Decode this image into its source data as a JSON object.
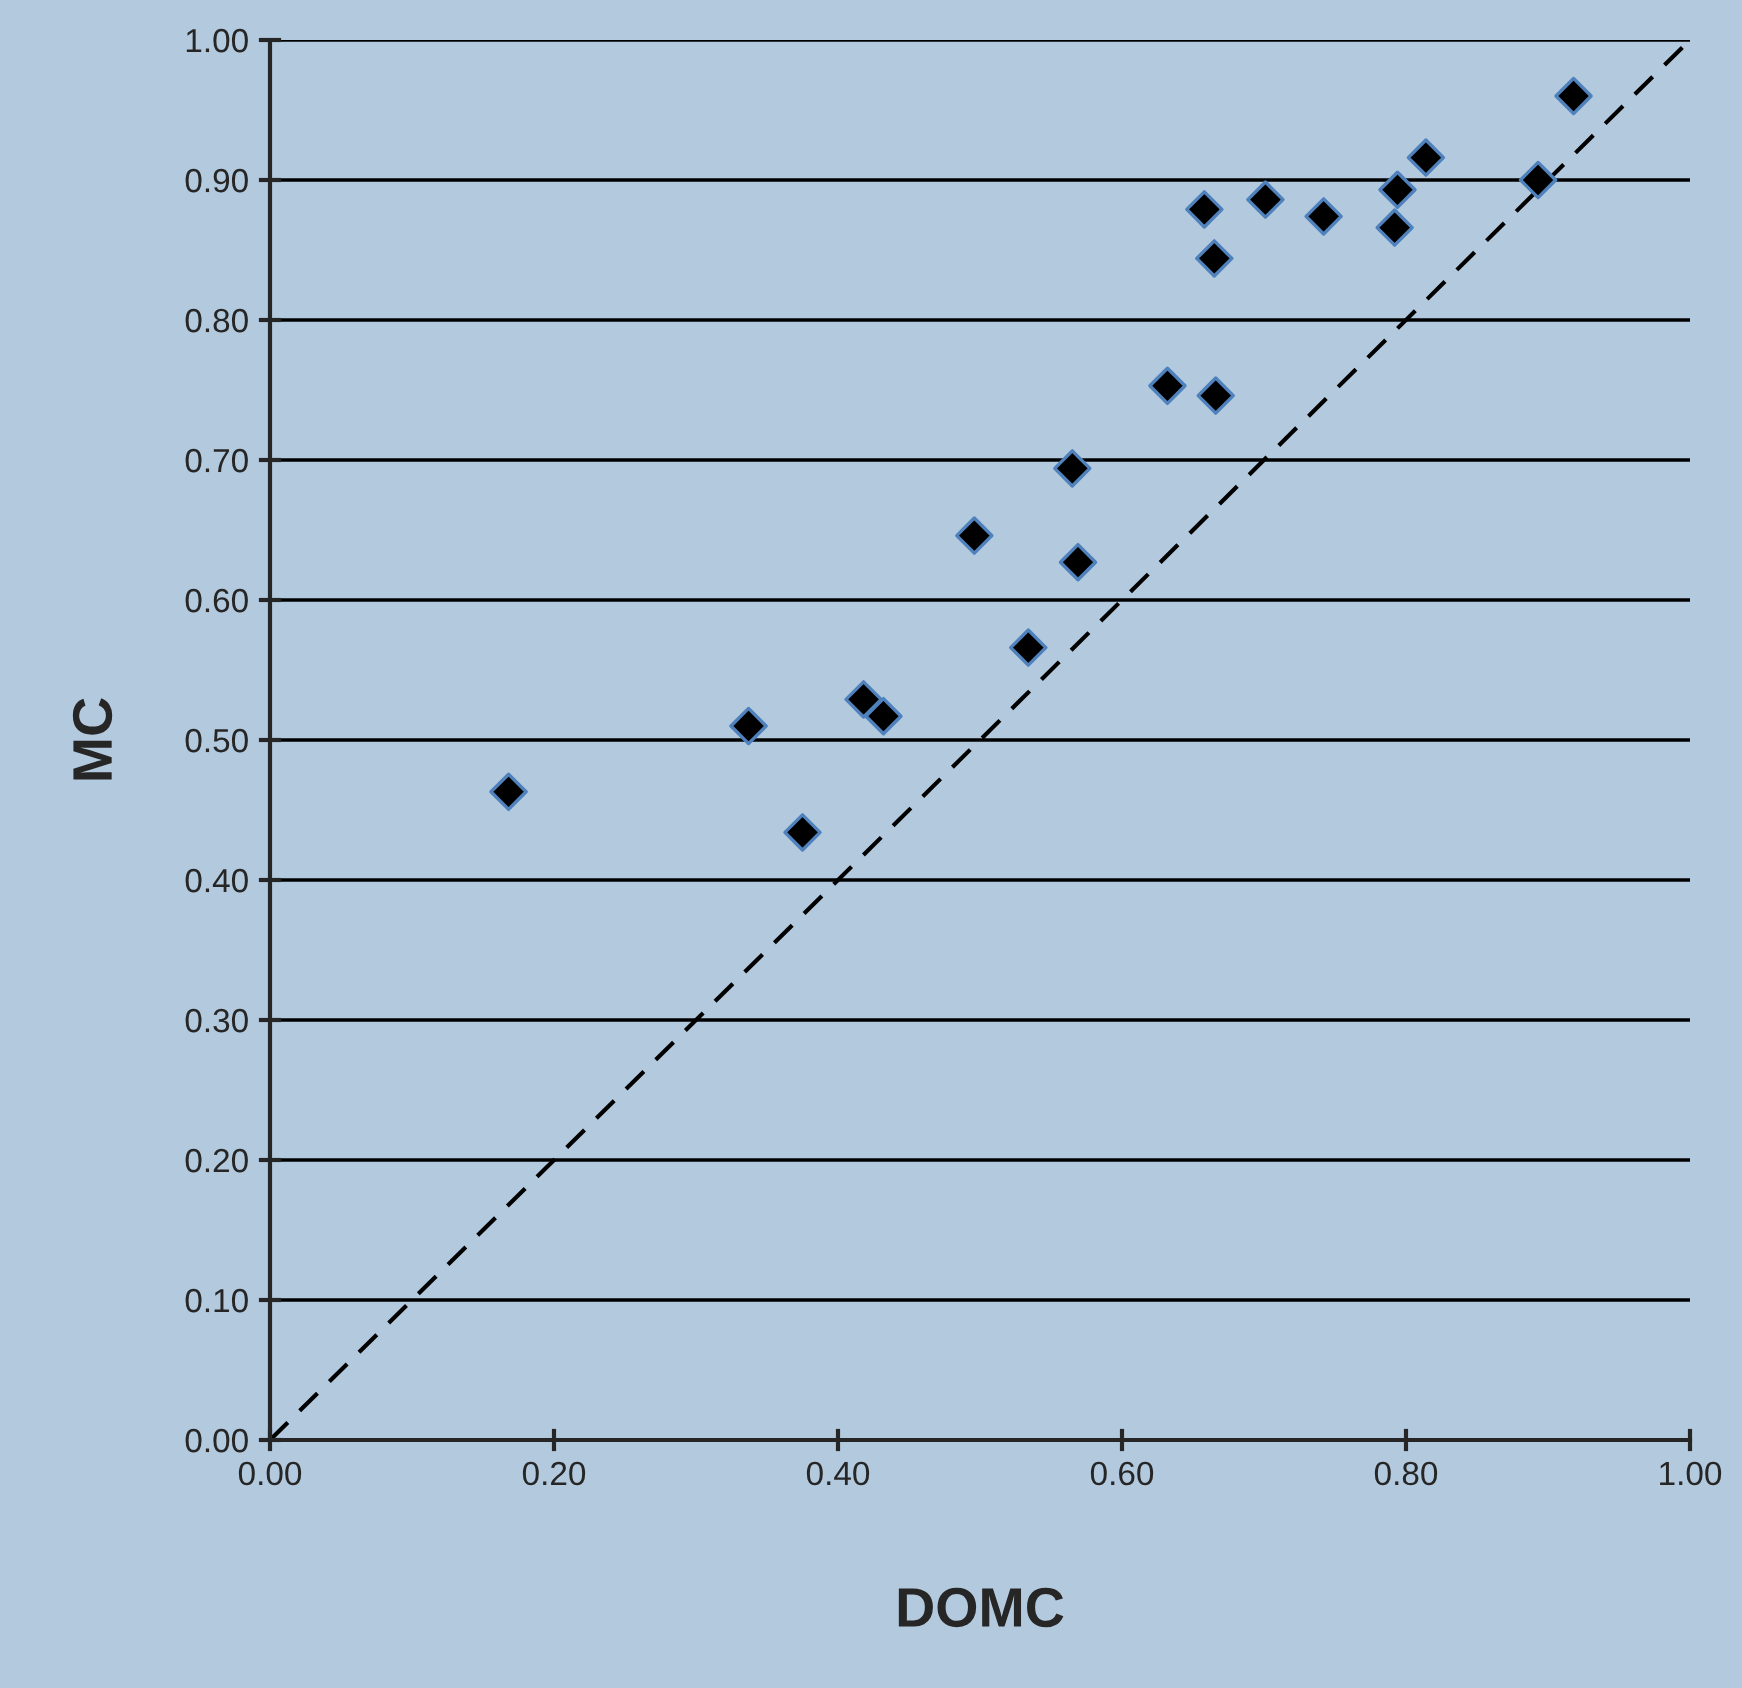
{
  "chart_data": {
    "type": "scatter",
    "xlabel": "DOMC",
    "ylabel": "MC",
    "series": [
      {
        "color": "#000000",
        "marker": "diamond",
        "x": [
          0.168,
          0.337,
          0.375,
          0.418,
          0.432,
          0.496,
          0.534,
          0.565,
          0.569,
          0.632,
          0.666,
          0.658,
          0.665,
          0.701,
          0.742,
          0.792,
          0.794,
          0.814,
          0.893,
          0.918
        ],
        "values": [
          0.463,
          0.51,
          0.434,
          0.529,
          0.517,
          0.646,
          0.566,
          0.694,
          0.627,
          0.753,
          0.746,
          0.879,
          0.844,
          0.886,
          0.874,
          0.866,
          0.893,
          0.916,
          0.9,
          0.96
        ]
      },
      {
        "type": "line",
        "color": "#000000",
        "line_style": "dashed",
        "marker": "none",
        "x": [
          0,
          1
        ],
        "values": [
          0,
          1
        ]
      }
    ],
    "xlim": [
      0,
      1
    ],
    "ylim": [
      0,
      1
    ],
    "xticks": [
      {
        "value": 0,
        "label": "0.00"
      },
      {
        "value": 0.2,
        "label": "0.20"
      },
      {
        "value": 0.4,
        "label": "0.40"
      },
      {
        "value": 0.6,
        "label": "0.60"
      },
      {
        "value": 0.8,
        "label": "0.80"
      },
      {
        "value": 1,
        "label": "1.00"
      }
    ],
    "yticks": [
      {
        "value": 0,
        "label": "0.00"
      },
      {
        "value": 0.1,
        "label": "0.10"
      },
      {
        "value": 0.2,
        "label": "0.20"
      },
      {
        "value": 0.3,
        "label": "0.30"
      },
      {
        "value": 0.4,
        "label": "0.40"
      },
      {
        "value": 0.5,
        "label": "0.50"
      },
      {
        "value": 0.6,
        "label": "0.60"
      },
      {
        "value": 0.7,
        "label": "0.70"
      },
      {
        "value": 0.8,
        "label": "0.80"
      },
      {
        "value": 0.9,
        "label": "0.90"
      },
      {
        "value": 1,
        "label": "1.00"
      }
    ],
    "grid": "y",
    "legend": false
  }
}
